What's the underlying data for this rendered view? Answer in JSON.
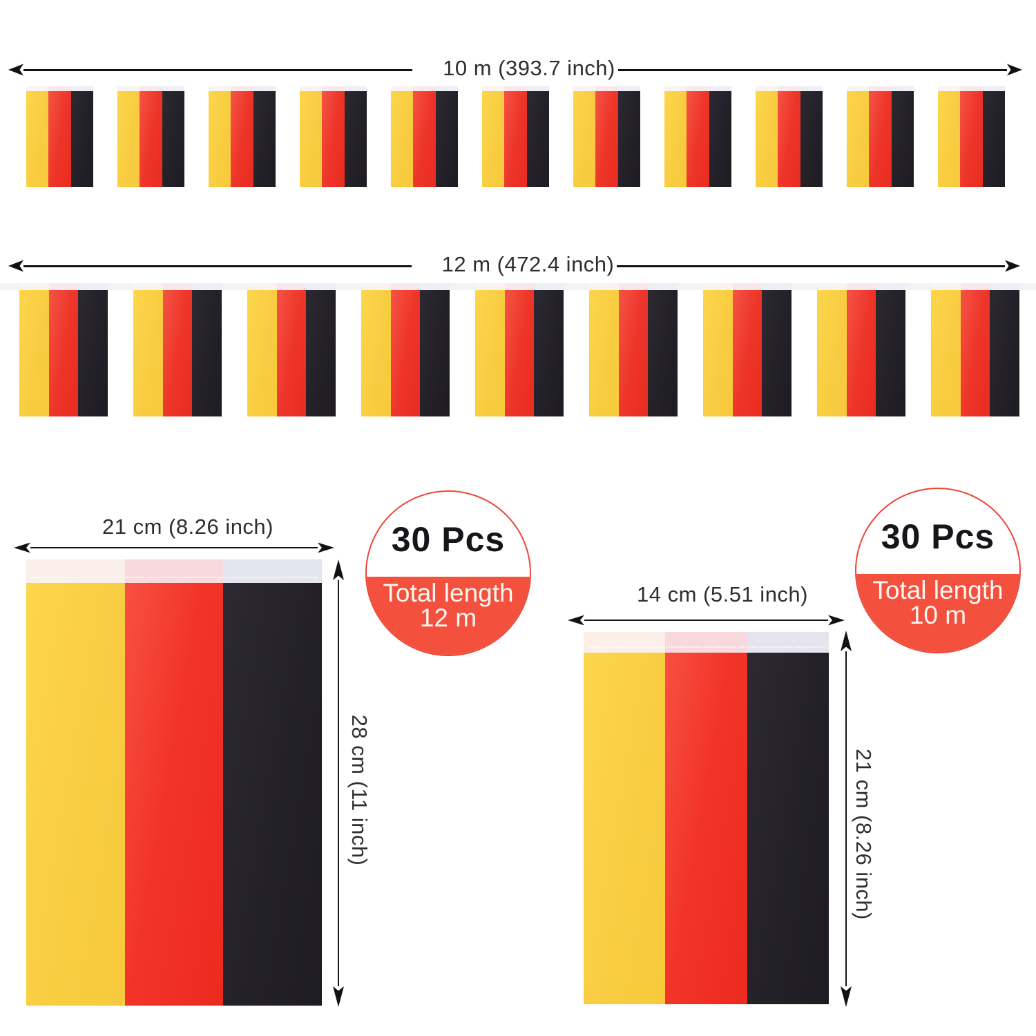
{
  "strings": {
    "row1": {
      "label": "10 m (393.7 inch)",
      "flag_count": 11
    },
    "row2": {
      "label": "12 m (472.4 inch)",
      "flag_count": 9
    }
  },
  "left_flag": {
    "width_label": "21 cm (8.26 inch)",
    "height_label": "28 cm (11 inch)"
  },
  "right_flag": {
    "width_label": "14 cm (5.51 inch)",
    "height_label": "21 cm (8.26 inch)"
  },
  "badges": {
    "left": {
      "pieces": "30 Pcs",
      "line1": "Total length",
      "line2": "12 m"
    },
    "right": {
      "pieces": "30 Pcs",
      "line1": "Total length",
      "line2": "10 m"
    }
  },
  "colors": {
    "flag_yellow": "#facd42",
    "flag_red": "#ee3529",
    "flag_black": "#232028",
    "badge_red": "#f4503e",
    "arrow_black": "#121212",
    "label_text": "#2f2d2f"
  }
}
